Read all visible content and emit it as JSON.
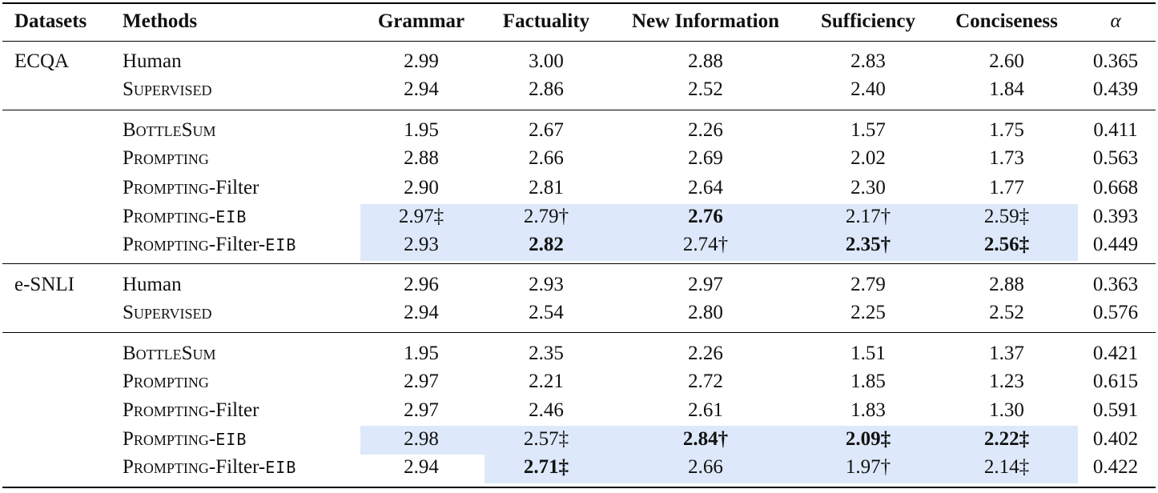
{
  "headers": {
    "datasets": "Datasets",
    "methods": "Methods",
    "grammar": "Grammar",
    "factuality": "Factuality",
    "new_information": "New Information",
    "sufficiency": "Sufficiency",
    "conciseness": "Conciseness",
    "alpha": "α"
  },
  "highlight_color": "#dde9fa",
  "datasets": [
    {
      "name": "ECQA",
      "rows": [
        {
          "method": "Human",
          "values": [
            "2.99",
            "3.00",
            "2.88",
            "2.83",
            "2.60",
            "0.365"
          ]
        },
        {
          "method": "Supervised",
          "values": [
            "2.94",
            "2.86",
            "2.52",
            "2.40",
            "1.84",
            "0.439"
          ]
        },
        {
          "method": "BottleSum",
          "values": [
            "1.95",
            "2.67",
            "2.26",
            "1.57",
            "1.75",
            "0.411"
          ]
        },
        {
          "method": "Prompting",
          "values": [
            "2.88",
            "2.66",
            "2.69",
            "2.02",
            "1.73",
            "0.563"
          ]
        },
        {
          "method": "Prompting-Filter",
          "values": [
            "2.90",
            "2.81",
            "2.64",
            "2.30",
            "1.77",
            "0.668"
          ]
        },
        {
          "method": "Prompting-EIB",
          "values": [
            "2.97‡",
            "2.79†",
            "2.76",
            "2.17†",
            "2.59‡",
            "0.393"
          ]
        },
        {
          "method": "Prompting-Filter-EIB",
          "values": [
            "2.93",
            "2.82",
            "2.74†",
            "2.35†",
            "2.56‡",
            "0.449"
          ]
        }
      ]
    },
    {
      "name": "e-SNLI",
      "rows": [
        {
          "method": "Human",
          "values": [
            "2.96",
            "2.93",
            "2.97",
            "2.79",
            "2.88",
            "0.363"
          ]
        },
        {
          "method": "Supervised",
          "values": [
            "2.94",
            "2.54",
            "2.80",
            "2.25",
            "2.52",
            "0.576"
          ]
        },
        {
          "method": "BottleSum",
          "values": [
            "1.95",
            "2.35",
            "2.26",
            "1.51",
            "1.37",
            "0.421"
          ]
        },
        {
          "method": "Prompting",
          "values": [
            "2.97",
            "2.21",
            "2.72",
            "1.85",
            "1.23",
            "0.615"
          ]
        },
        {
          "method": "Prompting-Filter",
          "values": [
            "2.97",
            "2.46",
            "2.61",
            "1.83",
            "1.30",
            "0.591"
          ]
        },
        {
          "method": "Prompting-EIB",
          "values": [
            "2.98",
            "2.57‡",
            "2.84†",
            "2.09‡",
            "2.22‡",
            "0.402"
          ]
        },
        {
          "method": "Prompting-Filter-EIB",
          "values": [
            "2.94",
            "2.71‡",
            "2.66",
            "1.97†",
            "2.14‡",
            "0.422"
          ]
        }
      ]
    }
  ]
}
